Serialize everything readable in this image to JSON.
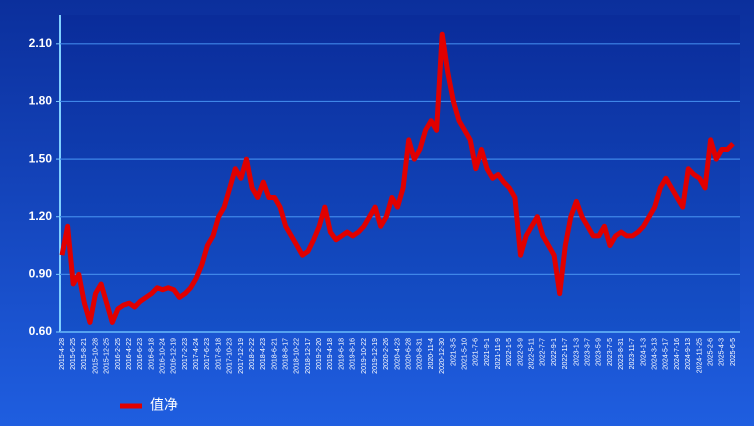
{
  "chart_data": {
    "type": "line",
    "categories": [
      "2015-4-28",
      null,
      "2015-6-25",
      null,
      "2015-8-21",
      null,
      "2015-10-28",
      null,
      "2015-12-25",
      null,
      "2016-2-25",
      null,
      "2016-4-22",
      null,
      "2016-6-23",
      null,
      "2016-8-18",
      null,
      "2016-10-24",
      null,
      "2016-12-19",
      null,
      "2017-2-23",
      null,
      "2017-4-24",
      null,
      "2017-6-23",
      null,
      "2017-8-18",
      null,
      "2017-10-23",
      null,
      "2017-12-19",
      null,
      "2018-2-22",
      null,
      "2018-4-23",
      null,
      "2018-6-21",
      null,
      "2018-8-17",
      null,
      "2018-10-22",
      null,
      "2018-12-17",
      null,
      "2019-2-20",
      null,
      "2019-4-18",
      null,
      "2019-6-18",
      null,
      "2019-8-16",
      null,
      "2019-10-22",
      null,
      "2019-12-19",
      null,
      "2020-2-26",
      null,
      "2020-4-23",
      null,
      "2020-6-28",
      null,
      "2020-8-31",
      null,
      "2020-11-4",
      null,
      "2020-12-30",
      null,
      "2021-3-5",
      null,
      "2021-5-10",
      null,
      "2021-7-6",
      null,
      "2021-9-1",
      null,
      "2021-11-9",
      null,
      "2022-1-5",
      null,
      "2022-3-9",
      null,
      "2022-5-11",
      null,
      "2022-7-7",
      null,
      "2022-9-1",
      null,
      "2022-11-7",
      null,
      "2023-1-3",
      null,
      "2023-3-7",
      null,
      "2023-5-9",
      null,
      "2023-7-5",
      null,
      "2023-8-31",
      null,
      "2023-11-7",
      null,
      "2024-1-3",
      null,
      "2024-3-13",
      null,
      "2024-5-17",
      null,
      "2024-7-16",
      null,
      "2024-9-13",
      null,
      "2024-11-25",
      null,
      "2025-2-6",
      null,
      "2025-4-3",
      null,
      "2025-6-5"
    ],
    "series": [
      {
        "name": "值净",
        "color": "#e00000",
        "values": [
          1.0,
          1.15,
          0.85,
          0.9,
          0.75,
          0.65,
          0.8,
          0.85,
          0.75,
          0.65,
          0.72,
          0.74,
          0.75,
          0.73,
          0.76,
          0.78,
          0.8,
          0.83,
          0.82,
          0.83,
          0.82,
          0.78,
          0.8,
          0.83,
          0.88,
          0.95,
          1.05,
          1.1,
          1.2,
          1.25,
          1.35,
          1.45,
          1.4,
          1.5,
          1.35,
          1.3,
          1.38,
          1.3,
          1.3,
          1.25,
          1.15,
          1.1,
          1.05,
          1.0,
          1.02,
          1.08,
          1.15,
          1.25,
          1.12,
          1.08,
          1.1,
          1.12,
          1.1,
          1.12,
          1.15,
          1.2,
          1.25,
          1.15,
          1.2,
          1.3,
          1.25,
          1.35,
          1.6,
          1.5,
          1.55,
          1.65,
          1.7,
          1.65,
          2.15,
          1.95,
          1.8,
          1.7,
          1.65,
          1.6,
          1.45,
          1.55,
          1.45,
          1.4,
          1.42,
          1.38,
          1.35,
          1.3,
          1.0,
          1.1,
          1.15,
          1.2,
          1.1,
          1.05,
          1.0,
          0.8,
          1.05,
          1.2,
          1.28,
          1.2,
          1.15,
          1.1,
          1.1,
          1.15,
          1.05,
          1.1,
          1.12,
          1.1,
          1.1,
          1.12,
          1.15,
          1.2,
          1.25,
          1.35,
          1.4,
          1.35,
          1.3,
          1.25,
          1.45,
          1.42,
          1.4,
          1.35,
          1.6,
          1.5,
          1.55,
          1.55,
          1.58
        ]
      }
    ],
    "ylim": [
      0.6,
      2.25
    ],
    "yticks": [
      {
        "value": 0.6,
        "label": "0.60"
      },
      {
        "value": 0.9,
        "label": "0.90"
      },
      {
        "value": 1.2,
        "label": "1.20"
      },
      {
        "value": 1.5,
        "label": "1.50"
      },
      {
        "value": 1.8,
        "label": "1.80"
      },
      {
        "value": 2.1,
        "label": "2.10"
      }
    ],
    "grid": true
  }
}
